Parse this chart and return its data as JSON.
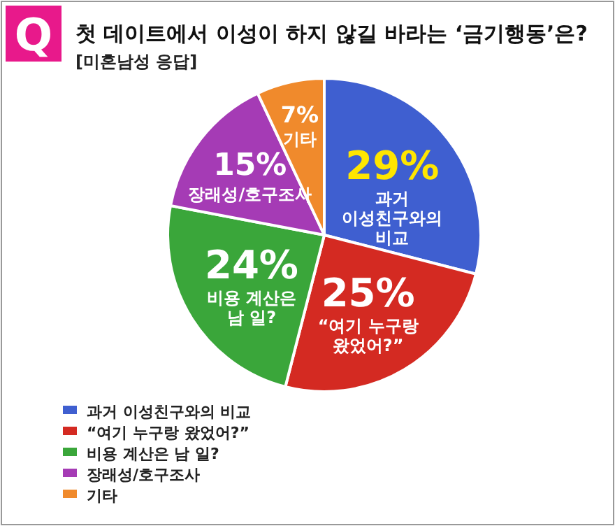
{
  "chart_data": {
    "type": "pie",
    "title": "첫 데이트에서 이성이 하지 않길 바라는 ‘금기행동’은?",
    "subtitle": "[미혼남성 응답]",
    "annotations": [
      "Q"
    ],
    "categories": [
      "과거 이성친구와의 비교",
      "“여기 누구랑 왔었어?”",
      "비용 계산은 남 일?",
      "장래성/호구조사",
      "기타"
    ],
    "values": [
      29,
      25,
      24,
      15,
      7
    ],
    "value_labels": [
      "29%",
      "25%",
      "24%",
      "15%",
      "7%"
    ],
    "colors": [
      "#3f5fd0",
      "#d42a22",
      "#3aa63a",
      "#a53bb5",
      "#f08a2c"
    ],
    "legend": "bottom left"
  }
}
